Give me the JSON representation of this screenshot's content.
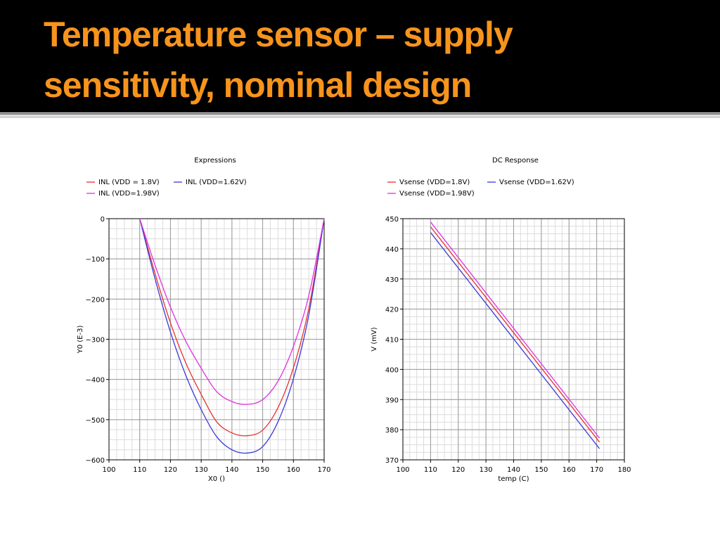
{
  "slide": {
    "title_line1": "Temperature sensor – supply",
    "title_line2": "sensitivity, nominal design",
    "title_color": "#f7941d",
    "header_bg": "#000000"
  },
  "chart_data": [
    {
      "type": "line",
      "title": "Expressions",
      "xlabel": "X0 ()",
      "ylabel": "Y0 (E-3)",
      "xlim": [
        100,
        170
      ],
      "ylim": [
        -600,
        0
      ],
      "xticks": [
        100,
        110,
        120,
        130,
        140,
        150,
        160,
        170
      ],
      "yticks": [
        0,
        -100,
        -200,
        -300,
        -400,
        -500,
        -600
      ],
      "grid": true,
      "legend_position": "top-left",
      "series": [
        {
          "name": "INL (VDD = 1.8V)",
          "color": "#e83030",
          "x": [
            110,
            115,
            120,
            125,
            130,
            135,
            140,
            145,
            150,
            155,
            160,
            165,
            170
          ],
          "y": [
            0,
            -137,
            -259,
            -359,
            -437,
            -505,
            -533,
            -540,
            -526,
            -470,
            -371,
            -224,
            0
          ]
        },
        {
          "name": "INL (VDD=1.62V)",
          "color": "#3a3ad8",
          "x": [
            110,
            115,
            120,
            125,
            130,
            135,
            140,
            145,
            150,
            155,
            160,
            165,
            170
          ],
          "y": [
            0,
            -150,
            -282,
            -390,
            -475,
            -542,
            -575,
            -583,
            -567,
            -505,
            -398,
            -240,
            0
          ]
        },
        {
          "name": "INL (VDD=1.98V)",
          "color": "#e030e0",
          "x": [
            110,
            115,
            120,
            125,
            130,
            135,
            140,
            145,
            150,
            155,
            160,
            165,
            170
          ],
          "y": [
            0,
            -116,
            -220,
            -305,
            -372,
            -430,
            -455,
            -462,
            -450,
            -404,
            -318,
            -192,
            0
          ]
        }
      ]
    },
    {
      "type": "line",
      "title": "DC Response",
      "xlabel": "temp (C)",
      "ylabel": "V (mV)",
      "xlim": [
        100,
        180
      ],
      "ylim": [
        370,
        450
      ],
      "xticks": [
        100,
        110,
        120,
        130,
        140,
        150,
        160,
        170,
        180
      ],
      "yticks": [
        370,
        380,
        390,
        400,
        410,
        420,
        430,
        440,
        450
      ],
      "grid": true,
      "legend_position": "top-left",
      "series": [
        {
          "name": "Vsense (VDD=1.8V)",
          "color": "#e83030",
          "x": [
            110,
            171
          ],
          "y": [
            447.3,
            375.9
          ]
        },
        {
          "name": "Vsense (VDD=1.62V)",
          "color": "#3a3ad8",
          "x": [
            110,
            171
          ],
          "y": [
            445.4,
            373.7
          ]
        },
        {
          "name": "Vsense (VDD=1.98V)",
          "color": "#e030e0",
          "x": [
            110,
            171
          ],
          "y": [
            448.9,
            377.2
          ]
        }
      ]
    }
  ]
}
